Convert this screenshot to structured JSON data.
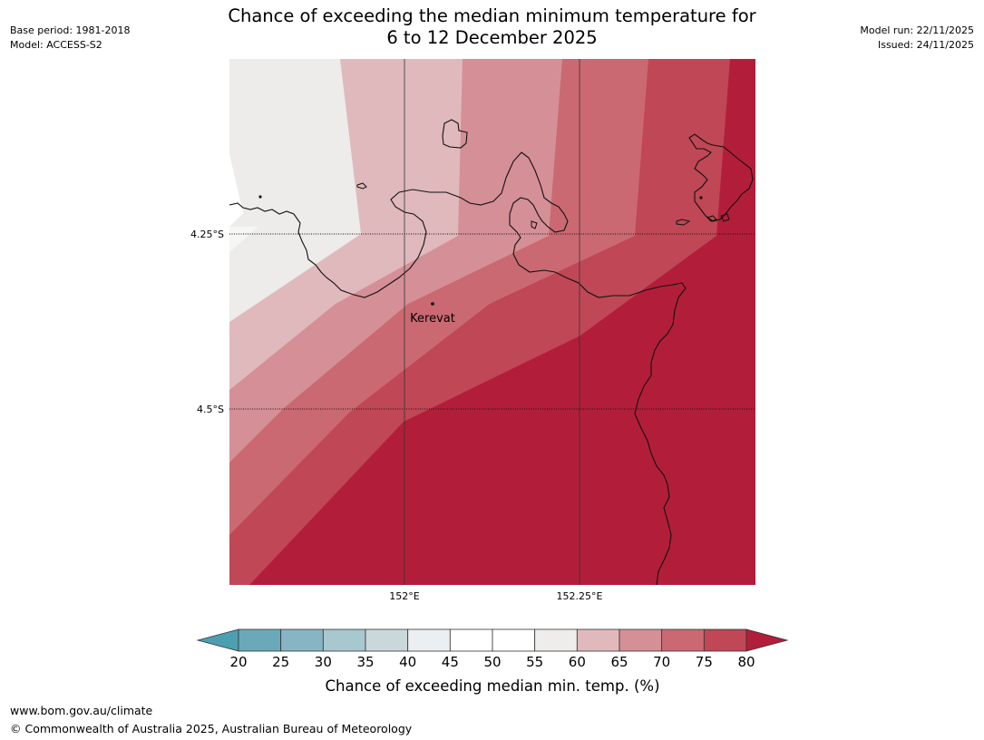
{
  "header": {
    "title_line1": "Chance of exceeding the median minimum temperature for",
    "title_line2": "6 to 12 December 2025",
    "base_period": "Base period: 1981-2018",
    "model": "Model: ACCESS-S2",
    "model_run": "Model run: 22/11/2025",
    "issued": "Issued: 24/11/2025"
  },
  "map": {
    "place_label": "Kerevat",
    "lat_labels": [
      "4.25°S",
      "4.5°S"
    ],
    "lon_labels": [
      "152°E",
      "152.25°E"
    ],
    "band_colors": {
      "55-60": "#edecea",
      "60-65": "#e0b9bd",
      "65-70": "#d58f97",
      "70-75": "#ca6972",
      "75-80": "#c04755",
      "80+": "#b21e3a"
    }
  },
  "colorbar": {
    "title": "Chance of exceeding median min. temp. (%)",
    "tick_labels": [
      "20",
      "25",
      "30",
      "35",
      "40",
      "45",
      "50",
      "55",
      "60",
      "65",
      "70",
      "75",
      "80"
    ],
    "low_color": "#4c9fb0",
    "segment_colors": [
      "#6aa9b9",
      "#87b5c3",
      "#a8c7ce",
      "#cad8dc",
      "#ebeff1",
      "#ffffff",
      "#ffffff",
      "#efedeb",
      "#e0b9bd",
      "#d58f97",
      "#ca6972",
      "#c04755"
    ],
    "high_color": "#b21e3a"
  },
  "footer": {
    "url": "www.bom.gov.au/climate",
    "copyright": "© Commonwealth of Australia 2025, Australian Bureau of Meteorology"
  }
}
